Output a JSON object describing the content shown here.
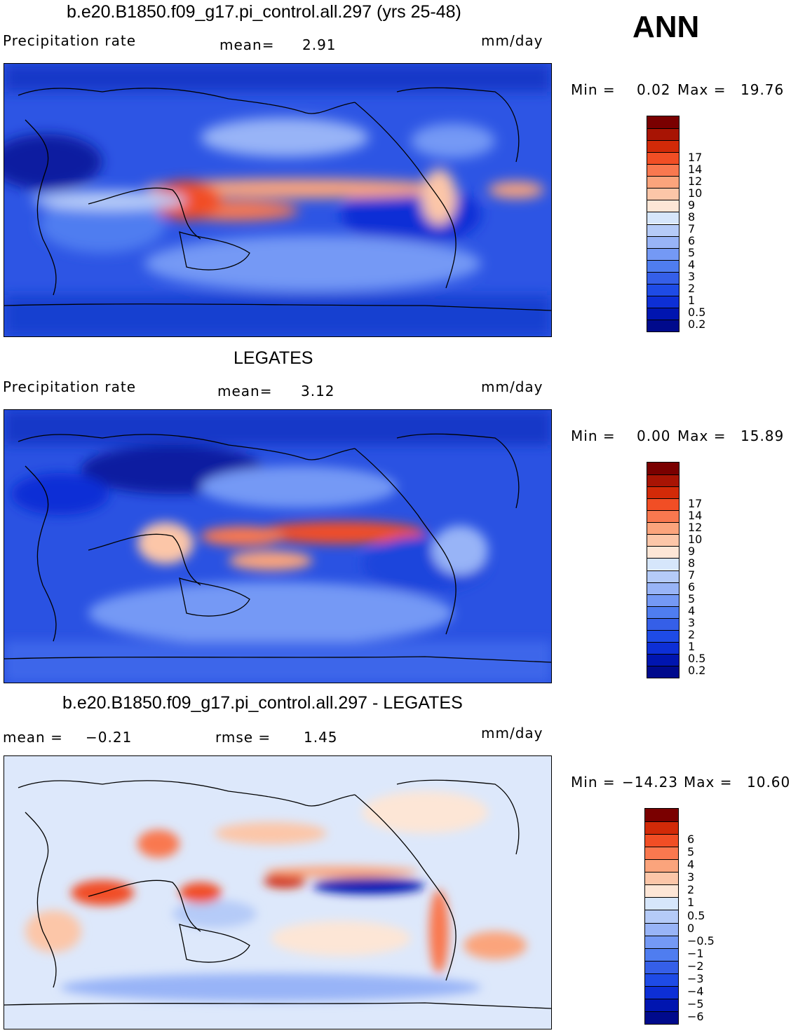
{
  "season": "ANN",
  "panels": [
    {
      "title": "b.e20.B1850.f09_g17.pi_control.all.297 (yrs 25-48)",
      "left_label": "Precipitation rate",
      "mean_label": "mean=",
      "mean_value": "2.91",
      "units": "mm/day",
      "min_label": "Min =",
      "min_value": "0.02",
      "max_label": "Max =",
      "max_value": "19.76"
    },
    {
      "title": "LEGATES",
      "left_label": "Precipitation rate",
      "mean_label": "mean=",
      "mean_value": "3.12",
      "units": "mm/day",
      "min_label": "Min =",
      "min_value": "0.00",
      "max_label": "Max =",
      "max_value": "15.89"
    },
    {
      "title": "b.e20.B1850.f09_g17.pi_control.all.297 - LEGATES",
      "left_label": "mean =",
      "left_value": "−0.21",
      "mean_label": "rmse =",
      "mean_value": "1.45",
      "units": "mm/day",
      "min_label": "Min =",
      "min_value": "−14.23",
      "max_label": "Max =",
      "max_value": "10.60"
    }
  ],
  "colorbars": {
    "precip": {
      "colors": [
        "#000a8c",
        "#0015b0",
        "#0d2fd6",
        "#1e4be6",
        "#355fe8",
        "#4f7df0",
        "#7499f5",
        "#98b4f7",
        "#b5cbf8",
        "#d6e6fb",
        "#fde6d6",
        "#fcc6a8",
        "#fba47c",
        "#f9784f",
        "#f14e25",
        "#d22a08",
        "#a81404",
        "#7a0000"
      ],
      "ticks": [
        "0.2",
        "0.5",
        "1",
        "2",
        "3",
        "4",
        "5",
        "6",
        "7",
        "8",
        "9",
        "10",
        "12",
        "14",
        "17"
      ]
    },
    "diff": {
      "colors": [
        "#000a8c",
        "#0015b0",
        "#0d2fd6",
        "#1e4be6",
        "#355fe8",
        "#4f7df0",
        "#7499f5",
        "#98b4f7",
        "#b5cbf8",
        "#d6e6fb",
        "#fde6d6",
        "#fcc6a8",
        "#fba47c",
        "#f9784f",
        "#f14e25",
        "#d22a08",
        "#7a0000"
      ],
      "ticks": [
        "−6",
        "−5",
        "−4",
        "−3",
        "−2",
        "−1",
        "−0.5",
        "0",
        "0.5",
        "1",
        "2",
        "3",
        "4",
        "5",
        "6"
      ]
    }
  },
  "chart_data": [
    {
      "type": "heatmap",
      "title": "b.e20.B1850.f09_g17.pi_control.all.297 (yrs 25-48)",
      "variable": "Precipitation rate",
      "units": "mm/day",
      "mean": 2.91,
      "min": 0.02,
      "max": 19.76,
      "levels": [
        0.2,
        0.5,
        1,
        2,
        3,
        4,
        5,
        6,
        7,
        8,
        9,
        10,
        12,
        14,
        17
      ]
    },
    {
      "type": "heatmap",
      "title": "LEGATES",
      "variable": "Precipitation rate",
      "units": "mm/day",
      "mean": 3.12,
      "min": 0.0,
      "max": 15.89,
      "levels": [
        0.2,
        0.5,
        1,
        2,
        3,
        4,
        5,
        6,
        7,
        8,
        9,
        10,
        12,
        14,
        17
      ]
    },
    {
      "type": "heatmap",
      "title": "b.e20.B1850.f09_g17.pi_control.all.297 - LEGATES",
      "units": "mm/day",
      "mean": -0.21,
      "rmse": 1.45,
      "min": -14.23,
      "max": 10.6,
      "levels": [
        -6,
        -5,
        -4,
        -3,
        -2,
        -1,
        -0.5,
        0,
        0.5,
        1,
        2,
        3,
        4,
        5,
        6
      ]
    }
  ]
}
